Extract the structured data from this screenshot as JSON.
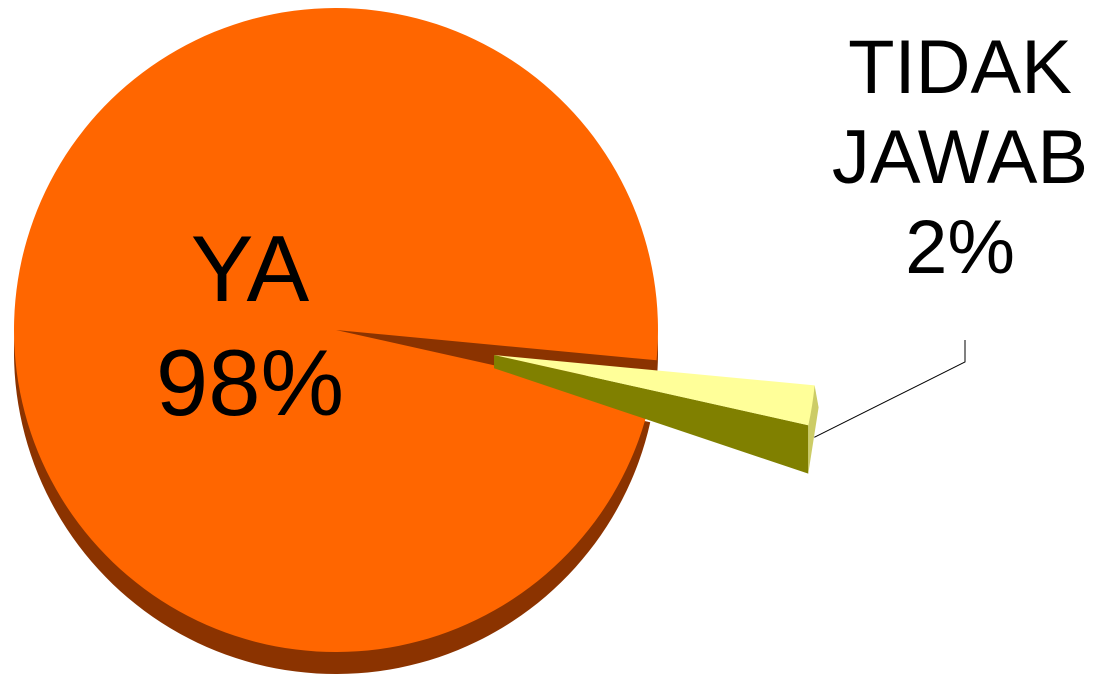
{
  "chart_data": {
    "type": "pie",
    "title": "",
    "slices": [
      {
        "label": "YA",
        "value": 98,
        "value_label": "98%",
        "color": "#FF6600",
        "side_color": "#8B3300",
        "exploded": false
      },
      {
        "label": "TIDAK JAWAB",
        "label_lines": [
          "TIDAK",
          "JAWAB"
        ],
        "value": 2,
        "value_label": "2%",
        "color": "#FFFF99",
        "side_color": "#808000",
        "exploded": true
      }
    ],
    "style": "3d-pie",
    "legend": "none",
    "leader_line": true
  }
}
